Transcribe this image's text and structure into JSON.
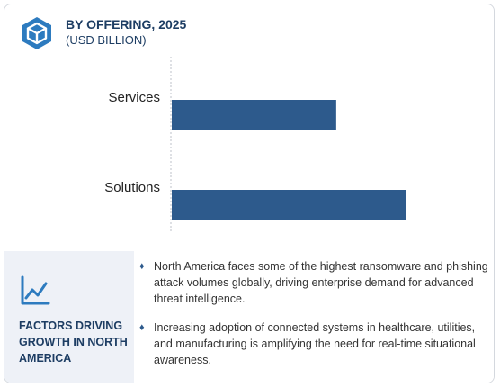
{
  "header": {
    "logo_icon": "cube-icon",
    "title": "BY OFFERING, 2025",
    "subtitle": "(USD BILLION)"
  },
  "chart_data": {
    "type": "bar",
    "orientation": "horizontal",
    "categories": [
      "Services",
      "Solutions"
    ],
    "values": [
      4.0,
      5.7
    ],
    "title": "BY OFFERING, 2025",
    "subtitle": "(USD BILLION)",
    "xlabel": "",
    "ylabel": "",
    "xlim": [
      0,
      7
    ],
    "grid": false,
    "legend": "none",
    "bar_color": "#2d5a8c"
  },
  "factors": {
    "icon": "trend-line-icon",
    "title": "FACTORS DRIVING GROWTH IN NORTH AMERICA",
    "bullets": [
      "North America faces some of the highest ransomware and phishing attack volumes globally, driving enterprise demand for advanced threat intelligence.",
      "Increasing adoption of connected systems in healthcare, utilities, and manufacturing is amplifying the need for real-time situational awareness."
    ]
  },
  "colors": {
    "accent": "#2d5a8c",
    "heading": "#1d3d63",
    "panel_bg": "#eef1f7"
  }
}
